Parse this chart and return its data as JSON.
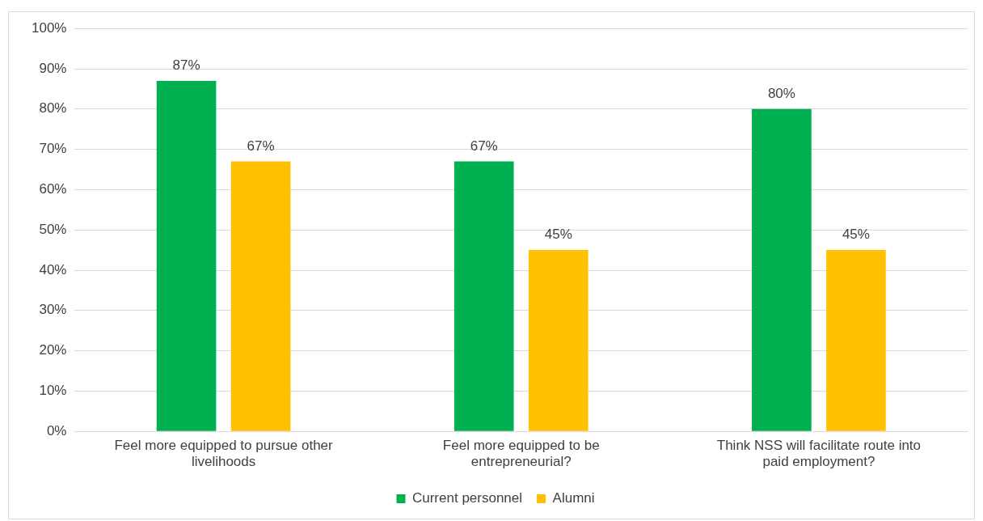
{
  "chart_data": {
    "type": "bar",
    "categories": [
      "Feel more equipped to pursue other livelihoods",
      "Feel more equipped to be entrepreneurial?",
      "Think NSS will facilitate route into paid employment?"
    ],
    "series": [
      {
        "name": "Current personnel",
        "color": "#00b050",
        "values": [
          87,
          67,
          80
        ]
      },
      {
        "name": "Alumni",
        "color": "#ffc000",
        "values": [
          67,
          45,
          45
        ]
      }
    ],
    "value_labels": [
      [
        "87%",
        "67%",
        "80%"
      ],
      [
        "67%",
        "45%",
        "45%"
      ]
    ],
    "ylim": [
      0,
      100
    ],
    "yticks": [
      {
        "value": 0,
        "label": "0%"
      },
      {
        "value": 10,
        "label": "10%"
      },
      {
        "value": 20,
        "label": "20%"
      },
      {
        "value": 30,
        "label": "30%"
      },
      {
        "value": 40,
        "label": "40%"
      },
      {
        "value": 50,
        "label": "50%"
      },
      {
        "value": 60,
        "label": "60%"
      },
      {
        "value": 70,
        "label": "70%"
      },
      {
        "value": 80,
        "label": "80%"
      },
      {
        "value": 90,
        "label": "90%"
      },
      {
        "value": 100,
        "label": "100%"
      }
    ],
    "grid": "y",
    "legend": "bottom"
  }
}
